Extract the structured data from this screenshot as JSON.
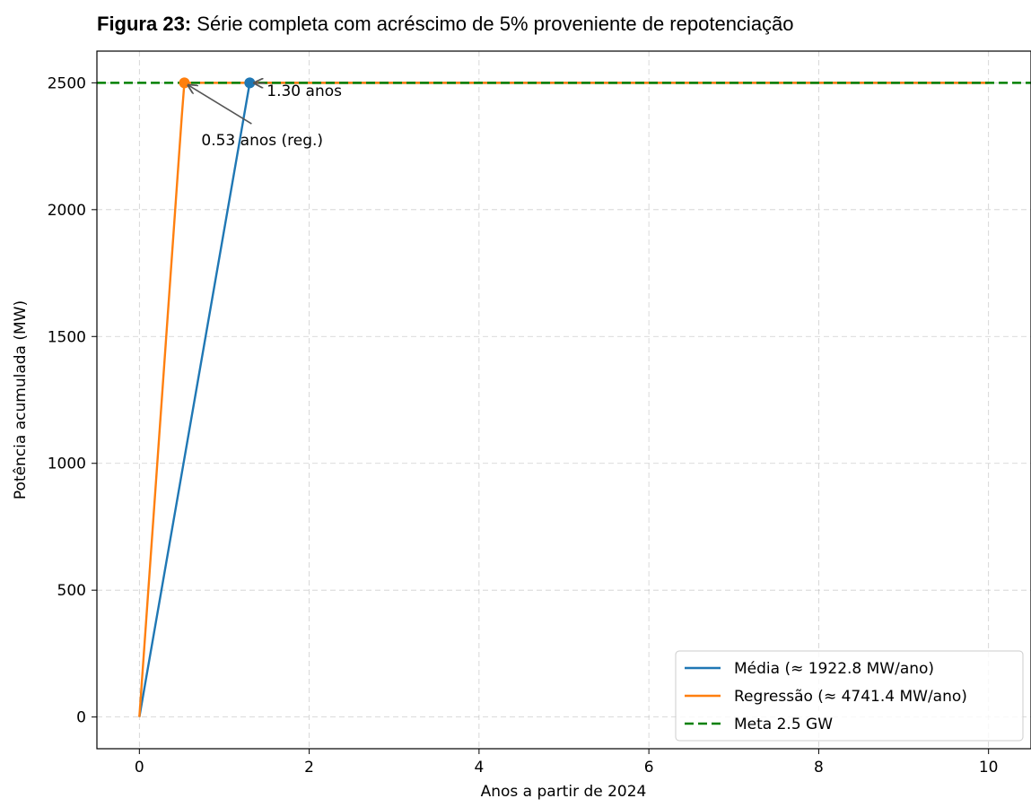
{
  "figure": {
    "label": "Figura 23:",
    "caption": "Série completa com acréscimo de 5% proveniente de repotenciação"
  },
  "chart_data": {
    "type": "line",
    "xlabel": "Anos a partir de 2024",
    "ylabel": "Potência acumulada (MW)",
    "xlim": [
      -0.5,
      10.5
    ],
    "ylim": [
      -125,
      2625
    ],
    "xticks": [
      0,
      2,
      4,
      6,
      8,
      10
    ],
    "yticks": [
      0,
      500,
      1000,
      1500,
      2000,
      2500
    ],
    "grid": true,
    "legend_position": "lower-right",
    "series": [
      {
        "name": "Média (≈ 1922.8 MW/ano)",
        "color": "#1f77b4",
        "style": "solid",
        "x": [
          0,
          1.3,
          10
        ],
        "y": [
          0,
          2500,
          2500
        ]
      },
      {
        "name": "Regressão (≈ 4741.4 MW/ano)",
        "color": "#ff7f0e",
        "style": "solid",
        "x": [
          0,
          0.5,
          0.53,
          10
        ],
        "y": [
          0,
          2370,
          2500,
          2500
        ]
      },
      {
        "name": "Meta 2.5 GW",
        "color": "#008000",
        "style": "dashed",
        "x": [
          -0.5,
          10.5
        ],
        "y": [
          2500,
          2500
        ]
      }
    ],
    "markers": [
      {
        "series": 0,
        "x": 1.3,
        "y": 2500,
        "color": "#1f77b4"
      },
      {
        "series": 1,
        "x": 0.53,
        "y": 2500,
        "color": "#ff7f0e"
      }
    ],
    "annotations": [
      {
        "text": "1.30 anos",
        "point": [
          1.3,
          2500
        ],
        "text_pos": [
          1.5,
          2470
        ],
        "anchor": "start"
      },
      {
        "text": "0.53 anos (reg.)",
        "point": [
          0.53,
          2500
        ],
        "text_pos": [
          0.73,
          2275
        ],
        "anchor": "start"
      }
    ]
  }
}
